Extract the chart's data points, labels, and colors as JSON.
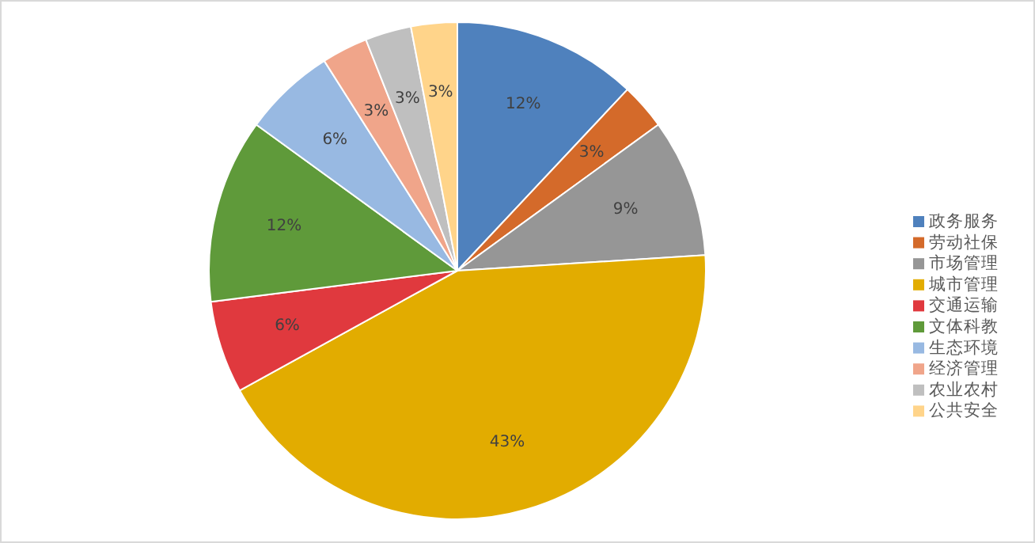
{
  "chart_data": {
    "type": "pie",
    "categories": [
      "政务服务",
      "劳动社保",
      "市场管理",
      "城市管理",
      "交通运输",
      "文体科教",
      "生态环境",
      "经济管理",
      "农业农村",
      "公共安全"
    ],
    "values": [
      12,
      3,
      9,
      43,
      6,
      12,
      6,
      3,
      3,
      3
    ],
    "colors": [
      "#4f81bd",
      "#d46a2a",
      "#969696",
      "#e2ac00",
      "#e0393e",
      "#5f9a3a",
      "#98b9e2",
      "#f0a58a",
      "#bfbfbf",
      "#ffd48a"
    ],
    "value_labels": [
      "12%",
      "3%",
      "9%",
      "43%",
      "6%",
      "12%",
      "6%",
      "3%",
      "3%",
      "3%"
    ],
    "legend": "right"
  }
}
